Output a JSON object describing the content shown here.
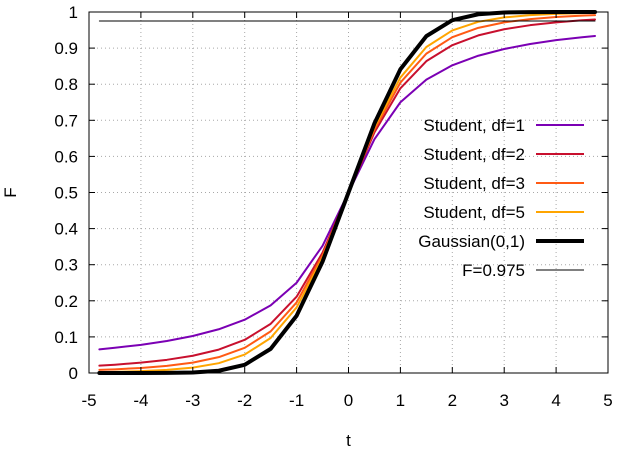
{
  "chart_data": {
    "type": "line",
    "xlabel": "t",
    "ylabel": "F",
    "xlim": [
      -5,
      5
    ],
    "ylim": [
      0,
      1
    ],
    "x_ticks": [
      "-5",
      "-4",
      "-3",
      "-2",
      "-1",
      "0",
      "1",
      "2",
      "3",
      "4",
      "5"
    ],
    "y_ticks": [
      "0",
      "0.1",
      "0.2",
      "0.3",
      "0.4",
      "0.5",
      "0.6",
      "0.7",
      "0.8",
      "0.9",
      "1"
    ],
    "grid": true,
    "legend_position": "right",
    "x": [
      -4.8,
      -4.5,
      -4,
      -3.5,
      -3,
      -2.5,
      -2,
      -1.5,
      -1,
      -0.5,
      0,
      0.5,
      1,
      1.5,
      2,
      2.5,
      3,
      3.5,
      4,
      4.5,
      4.75
    ],
    "series": [
      {
        "name": "Student, df=1",
        "color": "#7b00b4",
        "width": 2,
        "y": [
          0.0655,
          0.0699,
          0.078,
          0.0886,
          0.1024,
          0.1211,
          0.1476,
          0.1872,
          0.25,
          0.3524,
          0.5,
          0.6476,
          0.75,
          0.8128,
          0.8524,
          0.8789,
          0.8976,
          0.9114,
          0.922,
          0.9301,
          0.9336
        ]
      },
      {
        "name": "Student, df=2",
        "color": "#c8102e",
        "width": 2,
        "y": [
          0.0204,
          0.023,
          0.0286,
          0.0365,
          0.0477,
          0.0648,
          0.0918,
          0.1361,
          0.2113,
          0.3333,
          0.5,
          0.6667,
          0.7887,
          0.8639,
          0.9082,
          0.9352,
          0.9523,
          0.9635,
          0.9714,
          0.977,
          0.9792
        ]
      },
      {
        "name": "Student, df=3",
        "color": "#ff5a14",
        "width": 2,
        "y": [
          0.0086,
          0.0102,
          0.014,
          0.0197,
          0.0288,
          0.0439,
          0.0697,
          0.1153,
          0.1955,
          0.3257,
          0.5,
          0.6743,
          0.8045,
          0.8847,
          0.9303,
          0.9561,
          0.9712,
          0.9803,
          0.986,
          0.9898,
          0.9912
        ]
      },
      {
        "name": "Student, df=5",
        "color": "#ffa500",
        "width": 2,
        "y": [
          0.0024,
          0.0032,
          0.0052,
          0.0087,
          0.015,
          0.0272,
          0.051,
          0.097,
          0.1816,
          0.3191,
          0.5,
          0.6809,
          0.8184,
          0.903,
          0.949,
          0.9728,
          0.985,
          0.9913,
          0.9948,
          0.9968,
          0.9976
        ]
      },
      {
        "name": "Gaussian(0,1)",
        "color": "#000000",
        "width": 4,
        "y": [
          0.0,
          0.0,
          0.0,
          0.0002,
          0.0013,
          0.0062,
          0.0228,
          0.0668,
          0.1587,
          0.3085,
          0.5,
          0.6915,
          0.8413,
          0.9332,
          0.9772,
          0.9938,
          0.9987,
          0.9998,
          1.0,
          1.0,
          1.0
        ]
      },
      {
        "name": "F=0.975",
        "color": "#000000",
        "width": 1,
        "constant": 0.975
      }
    ]
  }
}
